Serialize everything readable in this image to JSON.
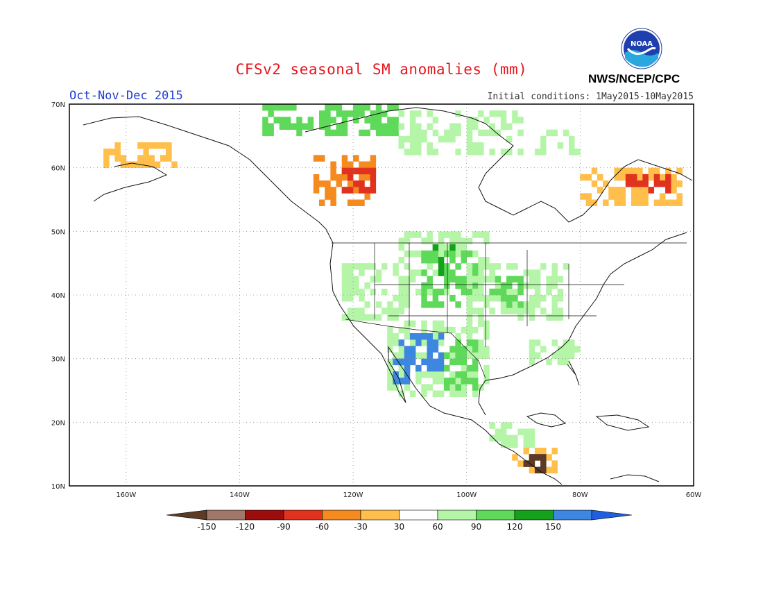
{
  "title": "CFSv2 seasonal SM anomalies (mm)",
  "season": "Oct-Nov-Dec 2015",
  "initial_conditions": "Initial conditions: 1May2015-10May2015",
  "agency": "NWS/NCEP/CPC",
  "logo_text": "NOAA",
  "map": {
    "lon_range": [
      -170,
      -60
    ],
    "lat_range": [
      10,
      70
    ],
    "lat_ticks": [
      "10N",
      "20N",
      "30N",
      "40N",
      "50N",
      "60N",
      "70N"
    ],
    "lon_ticks": [
      "160W",
      "140W",
      "120W",
      "100W",
      "80W",
      "60W"
    ]
  },
  "colorbar": {
    "labels": [
      "-150",
      "-120",
      "-90",
      "-60",
      "-30",
      "30",
      "60",
      "90",
      "120",
      "150"
    ],
    "colors": [
      "#5b3a26",
      "#a0786a",
      "#9c0d0d",
      "#e0321e",
      "#f58a1f",
      "#ffbf4a",
      "#ffffff",
      "#b5f5a8",
      "#5fd95a",
      "#16a11c",
      "#3d87e0",
      "#1f5fe0"
    ]
  },
  "anomaly_regions": [
    {
      "category": "wet_light",
      "lon": [
        -112,
        -96
      ],
      "lat": [
        40,
        50
      ]
    },
    {
      "category": "wet_light",
      "lon": [
        -122,
        -110
      ],
      "lat": [
        36,
        45
      ]
    },
    {
      "category": "wet_medium",
      "lon": [
        -108,
        -98
      ],
      "lat": [
        38,
        47
      ]
    },
    {
      "category": "wet_dark",
      "lon": [
        -106,
        -102
      ],
      "lat": [
        43,
        48
      ]
    },
    {
      "category": "wet_light",
      "lon": [
        -100,
        -82
      ],
      "lat": [
        36,
        45
      ]
    },
    {
      "category": "wet_medium",
      "lon": [
        -96,
        -90
      ],
      "lat": [
        38,
        43
      ]
    },
    {
      "category": "wet_light",
      "lon": [
        -114,
        -96
      ],
      "lat": [
        24,
        36
      ]
    },
    {
      "category": "wet_very",
      "lon": [
        -112,
        -104
      ],
      "lat": [
        28,
        34
      ]
    },
    {
      "category": "wet_medium",
      "lon": [
        -104,
        -98
      ],
      "lat": [
        25,
        33
      ]
    },
    {
      "category": "wet_very",
      "lon": [
        -113,
        -110
      ],
      "lat": [
        26,
        30
      ]
    },
    {
      "category": "wet_light",
      "lon": [
        -90,
        -80
      ],
      "lat": [
        29,
        33
      ]
    },
    {
      "category": "wet_medium",
      "lon": [
        -136,
        -112
      ],
      "lat": [
        65,
        70
      ]
    },
    {
      "category": "wet_light",
      "lon": [
        -112,
        -90
      ],
      "lat": [
        62,
        69
      ]
    },
    {
      "category": "wet_light",
      "lon": [
        -88,
        -80
      ],
      "lat": [
        62,
        66
      ]
    },
    {
      "category": "dry_orange",
      "lon": [
        -127,
        -116
      ],
      "lat": [
        54,
        62
      ]
    },
    {
      "category": "dry_red",
      "lon": [
        -122,
        -116
      ],
      "lat": [
        56,
        60
      ]
    },
    {
      "category": "dry_yellow",
      "lon": [
        -80,
        -62
      ],
      "lat": [
        54,
        60
      ]
    },
    {
      "category": "dry_red",
      "lon": [
        -72,
        -64
      ],
      "lat": [
        56,
        59
      ]
    },
    {
      "category": "dry_yellow",
      "lon": [
        -164,
        -150
      ],
      "lat": [
        60,
        64
      ]
    },
    {
      "category": "wet_light",
      "lon": [
        -96,
        -88
      ],
      "lat": [
        16,
        20
      ]
    },
    {
      "category": "dry_yellow",
      "lon": [
        -92,
        -84
      ],
      "lat": [
        12,
        16
      ]
    },
    {
      "category": "dry_brown",
      "lon": [
        -90,
        -86
      ],
      "lat": [
        12,
        15
      ]
    }
  ]
}
